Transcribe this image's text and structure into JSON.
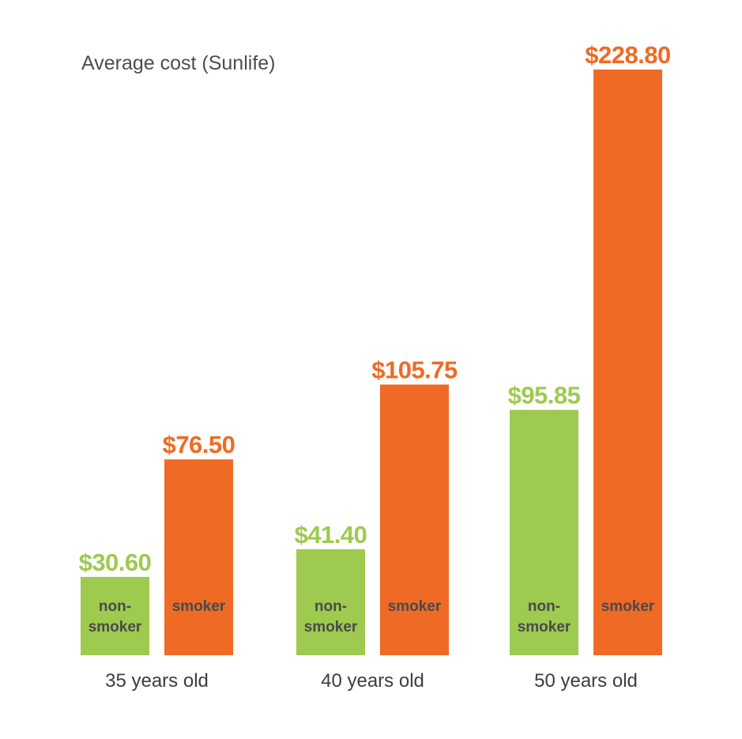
{
  "chart_data": {
    "type": "bar",
    "title": "Average cost (Sunlife)",
    "categories": [
      "35 years old",
      "40 years old",
      "50 years old"
    ],
    "series": [
      {
        "name": "non-smoker",
        "bar_label_lines": [
          "non-",
          "smoker"
        ],
        "values": [
          30.6,
          41.4,
          95.85
        ],
        "value_labels": [
          "$30.60",
          "$41.40",
          "$95.85"
        ],
        "color": "#9ECA4F"
      },
      {
        "name": "smoker",
        "bar_label_lines": [
          "smoker"
        ],
        "values": [
          76.5,
          105.75,
          228.8
        ],
        "value_labels": [
          "$76.50",
          "$105.75",
          "$228.80"
        ],
        "color": "#EF6A25"
      }
    ],
    "xlabel": "",
    "ylabel": "",
    "ylim": [
      0,
      228.8
    ],
    "grid": false,
    "axes_visible": false,
    "legend": "none"
  }
}
